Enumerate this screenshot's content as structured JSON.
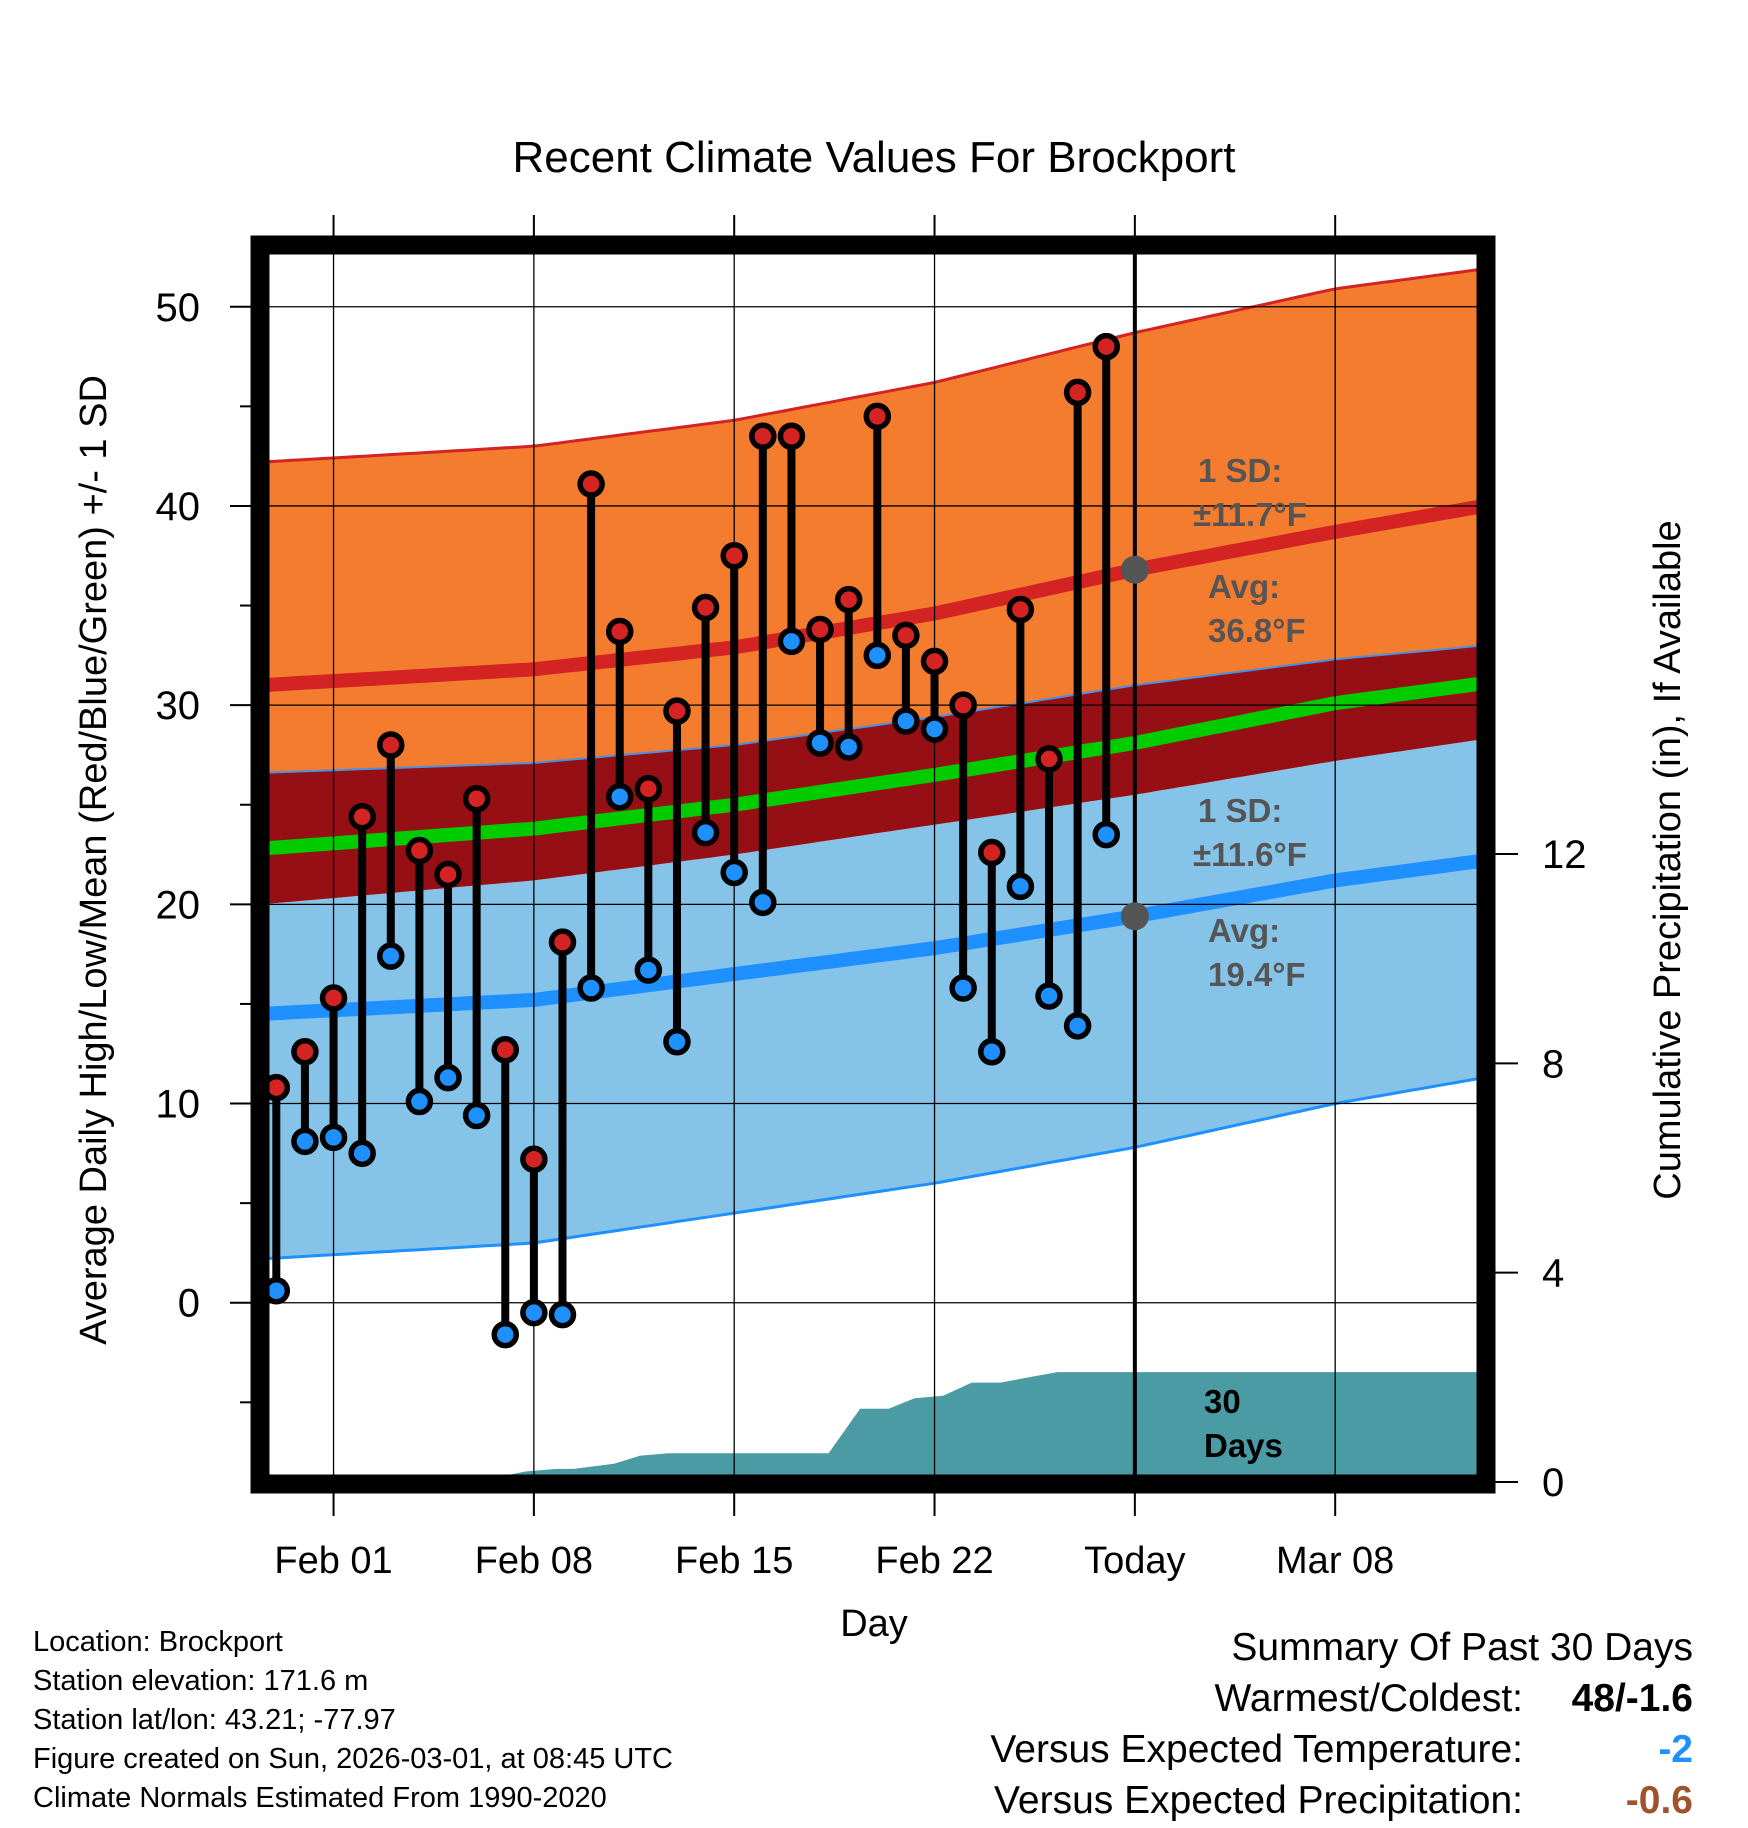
{
  "chart_data": {
    "type": "line",
    "title": "Recent Climate Values For Brockport",
    "xlabel": "Day",
    "ylabel": "Average Daily High/Low/Mean (Red/Blue/Green) +/- 1 SD",
    "y2label": "Cumulative Precipitation (in), If Available",
    "ylim": [
      -9,
      53
    ],
    "y2lim": [
      0,
      23.6
    ],
    "yticks": [
      "0",
      "10",
      "20",
      "30",
      "40",
      "50"
    ],
    "y2ticks": [
      "0",
      "4",
      "8",
      "12"
    ],
    "xlim": [
      -2.5,
      40.2
    ],
    "xticks": [
      {
        "day": 0,
        "label": "Feb 01"
      },
      {
        "day": 7,
        "label": "Feb 08"
      },
      {
        "day": 14,
        "label": "Feb 15"
      },
      {
        "day": 21,
        "label": "Feb 22"
      },
      {
        "day": 28,
        "label": "Today"
      },
      {
        "day": 35,
        "label": "Mar 08"
      }
    ],
    "today_day": 28,
    "normal_high": {
      "days": [
        -2.5,
        7,
        14,
        21,
        28,
        35,
        40.2
      ],
      "upper": [
        42.2,
        43.0,
        44.3,
        46.2,
        48.7,
        50.9,
        51.9
      ],
      "mean": [
        31.0,
        31.8,
        32.9,
        34.6,
        36.8,
        38.7,
        40.0
      ],
      "lower": [
        26.6,
        27.1,
        28.0,
        29.4,
        31.0,
        32.3,
        33.0
      ]
    },
    "normal_mean": {
      "days": [
        -2.5,
        7,
        14,
        21,
        28,
        35,
        40.2
      ],
      "mean": [
        22.8,
        23.8,
        25.0,
        26.5,
        28.1,
        30.1,
        31.1
      ]
    },
    "normal_low": {
      "days": [
        -2.5,
        7,
        14,
        21,
        28,
        35,
        40.2
      ],
      "upper": [
        20.0,
        21.2,
        22.5,
        24.0,
        25.5,
        27.2,
        28.3
      ],
      "mean": [
        14.5,
        15.2,
        16.5,
        17.8,
        19.4,
        21.2,
        22.2
      ],
      "lower": [
        2.2,
        3.0,
        4.5,
        6.0,
        7.8,
        10.0,
        11.3
      ]
    },
    "daily_days": [
      -2,
      -1,
      0,
      1,
      2,
      3,
      4,
      5,
      6,
      7,
      8,
      9,
      10,
      11,
      12,
      13,
      14,
      15,
      16,
      17,
      18,
      19,
      20,
      21,
      22,
      23,
      24,
      25,
      26,
      27
    ],
    "daily_high": [
      10.8,
      12.6,
      15.3,
      24.4,
      28.0,
      22.7,
      21.5,
      25.3,
      12.7,
      7.2,
      18.1,
      41.1,
      33.7,
      25.8,
      29.7,
      34.9,
      37.5,
      43.5,
      43.5,
      33.8,
      35.3,
      44.5,
      33.5,
      32.2,
      30.0,
      22.6,
      34.8,
      27.3,
      45.7,
      48.0
    ],
    "daily_low": [
      0.6,
      8.1,
      8.3,
      7.5,
      17.4,
      10.1,
      11.3,
      9.4,
      -1.6,
      -0.5,
      -0.6,
      15.8,
      25.4,
      16.7,
      13.1,
      23.6,
      21.6,
      20.1,
      33.2,
      28.1,
      27.9,
      32.5,
      29.2,
      28.8,
      15.8,
      12.6,
      20.9,
      15.4,
      13.9,
      23.5
    ],
    "cumulative_precip": {
      "days": [
        -2.5,
        3.6,
        5.8,
        6.7,
        7.8,
        8.4,
        9.8,
        10.7,
        11.7,
        12.6,
        13.5,
        14.5,
        15.5,
        16.4,
        17.3,
        18.4,
        19.4,
        20.3,
        21.3,
        22.3,
        23.3,
        24.3,
        25.3,
        26.3,
        27.3,
        28.3,
        40.2
      ],
      "values": [
        0.0,
        0.0,
        0.1,
        0.2,
        0.25,
        0.25,
        0.35,
        0.5,
        0.55,
        0.55,
        0.55,
        0.55,
        0.55,
        0.55,
        0.55,
        1.4,
        1.4,
        1.6,
        1.65,
        1.9,
        1.9,
        2.0,
        2.1,
        2.1,
        2.1,
        2.1,
        2.1
      ]
    },
    "annotations": {
      "high_sd_line1": "1 SD:",
      "high_sd_line2": "±11.7°F",
      "high_avg_line1": "Avg:",
      "high_avg_line2": "36.8°F",
      "low_sd_line1": "1 SD:",
      "low_sd_line2": "±11.6°F",
      "low_avg_line1": "Avg:",
      "low_avg_line2": "19.4°F",
      "window_line1": "30",
      "window_line2": "Days",
      "high_avg_value": 36.8,
      "low_avg_value": 19.4
    },
    "colors": {
      "high_band": "#f47c2f",
      "high_line": "#d42323",
      "mean_band": "#960f14",
      "mean_line": "#00cc00",
      "low_band": "#86c3e8",
      "low_line": "#1e90ff",
      "precip": "#4a9ba3",
      "high_dot": "#d42323",
      "low_dot": "#1e90ff",
      "annotation": "#555555"
    }
  },
  "info": {
    "location": "Location: Brockport",
    "elevation": "Station elevation: 171.6 m",
    "latlon": "Station lat/lon: 43.21; -77.97",
    "created": "Figure created on Sun, 2026-03-01, at 08:45 UTC",
    "normals": "Climate Normals Estimated From 1990-2020"
  },
  "summary": {
    "title": "Summary Of Past 30 Days",
    "warmest_label": "Warmest/Coldest:",
    "warmest_value": "48/-1.6",
    "temp_label": "Versus Expected Temperature:",
    "temp_value": "-2",
    "temp_color": "#1e90ff",
    "precip_label": "Versus Expected Precipitation:",
    "precip_value": "-0.6",
    "precip_color": "#a0522d"
  }
}
